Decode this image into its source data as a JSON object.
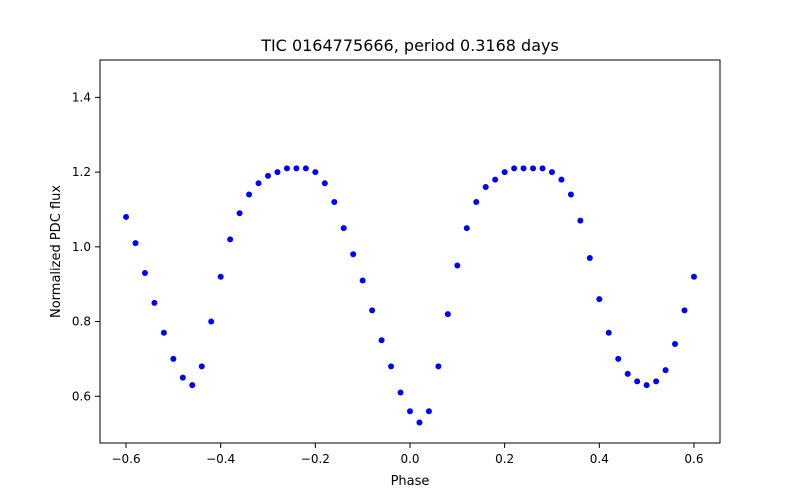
{
  "chart_data": {
    "type": "scatter",
    "title": "TIC 0164775666, period 0.3168 days",
    "xlabel": "Phase",
    "ylabel": "Normalized PDC flux",
    "xlim": [
      -0.655,
      0.655
    ],
    "ylim": [
      0.475,
      1.5
    ],
    "xticks": [
      -0.6,
      -0.4,
      -0.2,
      0.0,
      0.2,
      0.4,
      0.6
    ],
    "xtick_labels": [
      "−0.6",
      "−0.4",
      "−0.2",
      "0.0",
      "0.2",
      "0.4",
      "0.6"
    ],
    "yticks": [
      0.6,
      0.8,
      1.0,
      1.2,
      1.4
    ],
    "ytick_labels": [
      "0.6",
      "0.8",
      "1.0",
      "1.2",
      "1.4"
    ],
    "grid": false,
    "legend": "none",
    "marker_color": "#0000ff",
    "series": [
      {
        "x": [
          -0.6,
          -0.58,
          -0.56,
          -0.54,
          -0.52,
          -0.5,
          -0.48,
          -0.46,
          -0.44,
          -0.42,
          -0.4,
          -0.38,
          -0.36,
          -0.34,
          -0.32,
          -0.3,
          -0.28,
          -0.26,
          -0.24,
          -0.22,
          -0.2,
          -0.18,
          -0.16,
          -0.14,
          -0.12,
          -0.1,
          -0.08,
          -0.06,
          -0.04,
          -0.02,
          0.0,
          0.02,
          0.04,
          0.06,
          0.08,
          0.1,
          0.12,
          0.14,
          0.16,
          0.18,
          0.2,
          0.22,
          0.24,
          0.26,
          0.28,
          0.3,
          0.32,
          0.34,
          0.36,
          0.38,
          0.4,
          0.42,
          0.44,
          0.46,
          0.48,
          0.5,
          0.52,
          0.54,
          0.56,
          0.58,
          0.6
        ],
        "y": [
          1.08,
          1.01,
          0.93,
          0.85,
          0.77,
          0.7,
          0.65,
          0.63,
          0.68,
          0.8,
          0.92,
          1.02,
          1.09,
          1.14,
          1.17,
          1.19,
          1.2,
          1.21,
          1.21,
          1.21,
          1.2,
          1.17,
          1.12,
          1.05,
          0.98,
          0.91,
          0.83,
          0.75,
          0.68,
          0.61,
          0.56,
          0.53,
          0.56,
          0.68,
          0.82,
          0.95,
          1.05,
          1.12,
          1.16,
          1.18,
          1.2,
          1.21,
          1.21,
          1.21,
          1.21,
          1.2,
          1.18,
          1.14,
          1.07,
          0.97,
          0.86,
          0.77,
          0.7,
          0.66,
          0.64,
          0.63,
          0.64,
          0.67,
          0.74,
          0.83,
          0.92
        ]
      }
    ]
  }
}
